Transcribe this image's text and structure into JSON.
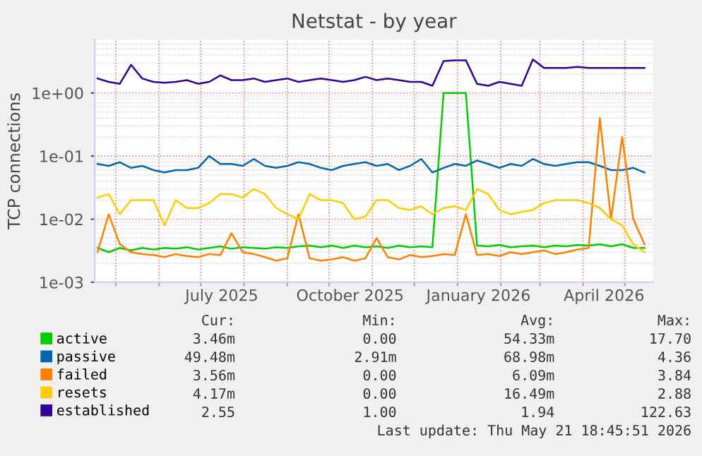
{
  "chart_data": {
    "type": "line",
    "title": "Netstat - by year",
    "ylabel": "TCP connections",
    "log": "y",
    "grid": true,
    "legend": "bottom",
    "x": [
      "2025-04-18",
      "2025-04-26",
      "2025-05-04",
      "2025-05-12",
      "2025-05-20",
      "2025-05-28",
      "2025-06-05",
      "2025-06-13",
      "2025-06-21",
      "2025-06-29",
      "2025-07-07",
      "2025-07-15",
      "2025-07-23",
      "2025-07-31",
      "2025-08-08",
      "2025-08-16",
      "2025-08-24",
      "2025-09-01",
      "2025-09-09",
      "2025-09-17",
      "2025-09-25",
      "2025-10-03",
      "2025-10-11",
      "2025-10-19",
      "2025-10-27",
      "2025-11-04",
      "2025-11-12",
      "2025-11-20",
      "2025-11-28",
      "2025-12-06",
      "2025-12-14",
      "2025-12-22",
      "2025-12-30",
      "2026-01-07",
      "2026-01-15",
      "2026-01-23",
      "2026-01-31",
      "2026-02-08",
      "2026-02-16",
      "2026-02-24",
      "2026-03-04",
      "2026-03-12",
      "2026-03-20",
      "2026-03-28",
      "2026-04-05",
      "2026-04-13",
      "2026-04-21",
      "2026-04-29",
      "2026-05-07",
      "2026-05-15"
    ],
    "xlim": [
      "2025-04-16",
      "2026-05-21"
    ],
    "xticks": [
      {
        "value": "2025-05-01",
        "label": null
      },
      {
        "value": "2025-06-01",
        "label": null
      },
      {
        "value": "2025-07-01",
        "label": null
      },
      {
        "value": "2025-07-16",
        "label": "July 2025"
      },
      {
        "value": "2025-08-01",
        "label": null
      },
      {
        "value": "2025-09-01",
        "label": null
      },
      {
        "value": "2025-10-01",
        "label": null
      },
      {
        "value": "2025-10-16",
        "label": "October 2025"
      },
      {
        "value": "2025-11-01",
        "label": null
      },
      {
        "value": "2025-12-01",
        "label": null
      },
      {
        "value": "2026-01-01",
        "label": null
      },
      {
        "value": "2026-01-16",
        "label": "January 2026"
      },
      {
        "value": "2026-02-01",
        "label": null
      },
      {
        "value": "2026-03-01",
        "label": null
      },
      {
        "value": "2026-04-01",
        "label": null
      },
      {
        "value": "2026-04-16",
        "label": "April 2026"
      },
      {
        "value": "2026-05-01",
        "label": null
      }
    ],
    "ylim": [
      0.001,
      7
    ],
    "yticks": [
      {
        "value": 0.001,
        "label": "1e-03"
      },
      {
        "value": 0.01,
        "label": "1e-02"
      },
      {
        "value": 0.1,
        "label": "1e-01"
      },
      {
        "value": 1,
        "label": "1e+00"
      }
    ],
    "series": [
      {
        "name": "active",
        "color": "#00cc00",
        "values": [
          0.0035,
          0.003,
          0.0035,
          0.0032,
          0.0035,
          0.0033,
          0.0035,
          0.0034,
          0.0036,
          0.0033,
          0.0035,
          0.0037,
          0.0034,
          0.0036,
          0.0035,
          0.0034,
          0.0036,
          0.0035,
          0.0037,
          0.0038,
          0.0036,
          0.0038,
          0.0035,
          0.0038,
          0.0036,
          0.0037,
          0.0035,
          0.0038,
          0.0036,
          0.0037,
          0.0036,
          1.0,
          1.0,
          1.0,
          0.0038,
          0.0037,
          0.0039,
          0.0036,
          0.0037,
          0.0038,
          0.0036,
          0.0038,
          0.0037,
          0.0039,
          0.0038,
          0.004,
          0.0037,
          0.004,
          0.0035,
          0.0035
        ]
      },
      {
        "name": "passive",
        "color": "#0066b3",
        "values": [
          0.075,
          0.07,
          0.08,
          0.065,
          0.07,
          0.06,
          0.055,
          0.06,
          0.06,
          0.065,
          0.1,
          0.075,
          0.075,
          0.07,
          0.09,
          0.07,
          0.065,
          0.07,
          0.08,
          0.075,
          0.065,
          0.06,
          0.07,
          0.075,
          0.08,
          0.07,
          0.075,
          0.06,
          0.07,
          0.09,
          0.055,
          0.065,
          0.075,
          0.07,
          0.085,
          0.075,
          0.065,
          0.075,
          0.07,
          0.09,
          0.075,
          0.07,
          0.075,
          0.08,
          0.08,
          0.07,
          0.06,
          0.06,
          0.065,
          0.055
        ]
      },
      {
        "name": "failed",
        "color": "#ff8000",
        "values": [
          0.003,
          0.012,
          0.004,
          0.003,
          0.0028,
          0.0027,
          0.0025,
          0.0028,
          0.0026,
          0.0025,
          0.0028,
          0.0027,
          0.006,
          0.003,
          0.0028,
          0.0025,
          0.0022,
          0.0024,
          0.012,
          0.0024,
          0.0022,
          0.0023,
          0.0025,
          0.0022,
          0.0024,
          0.005,
          0.0025,
          0.0023,
          0.0027,
          0.0025,
          0.0026,
          0.0028,
          0.0027,
          0.012,
          0.0027,
          0.0028,
          0.0026,
          0.003,
          0.0028,
          0.003,
          0.0032,
          0.0028,
          0.003,
          0.0033,
          0.0035,
          0.4,
          0.01,
          0.2,
          0.01,
          0.004
        ]
      },
      {
        "name": "resets",
        "color": "#ffcc00",
        "values": [
          0.022,
          0.025,
          0.012,
          0.02,
          0.02,
          0.02,
          0.008,
          0.02,
          0.015,
          0.015,
          0.018,
          0.025,
          0.025,
          0.022,
          0.03,
          0.025,
          0.015,
          0.012,
          0.01,
          0.025,
          0.02,
          0.02,
          0.018,
          0.01,
          0.011,
          0.02,
          0.02,
          0.015,
          0.014,
          0.016,
          0.012,
          0.015,
          0.016,
          0.014,
          0.03,
          0.025,
          0.014,
          0.012,
          0.013,
          0.014,
          0.018,
          0.02,
          0.02,
          0.02,
          0.018,
          0.015,
          0.01,
          0.008,
          0.004,
          0.003
        ]
      },
      {
        "name": "established",
        "color": "#330099",
        "values": [
          1.7,
          1.5,
          1.4,
          2.8,
          1.7,
          1.5,
          1.45,
          1.5,
          1.6,
          1.4,
          1.5,
          1.9,
          1.6,
          1.6,
          1.7,
          1.5,
          1.6,
          1.7,
          1.5,
          1.6,
          1.7,
          1.6,
          1.5,
          1.6,
          1.8,
          1.6,
          1.7,
          1.6,
          1.5,
          1.5,
          1.3,
          3.2,
          3.3,
          3.3,
          1.4,
          1.3,
          1.5,
          1.4,
          1.3,
          3.4,
          2.5,
          2.5,
          2.5,
          2.6,
          2.5,
          2.5,
          2.5,
          2.5,
          2.5,
          2.5
        ]
      }
    ],
    "annotations": [
      "Cur:",
      "Min:",
      "Avg:",
      "Max:",
      "3.46m",
      "0.00",
      "54.33m",
      "17.70",
      "49.48m",
      "2.91m",
      "68.98m",
      "4.36",
      "3.56m",
      "0.00",
      "6.09m",
      "3.84",
      "4.17m",
      "0.00",
      "16.49m",
      "2.88",
      "2.55",
      "1.00",
      "1.94",
      "122.63",
      "Last update: Thu May 21 18:45:51 2026"
    ]
  }
}
